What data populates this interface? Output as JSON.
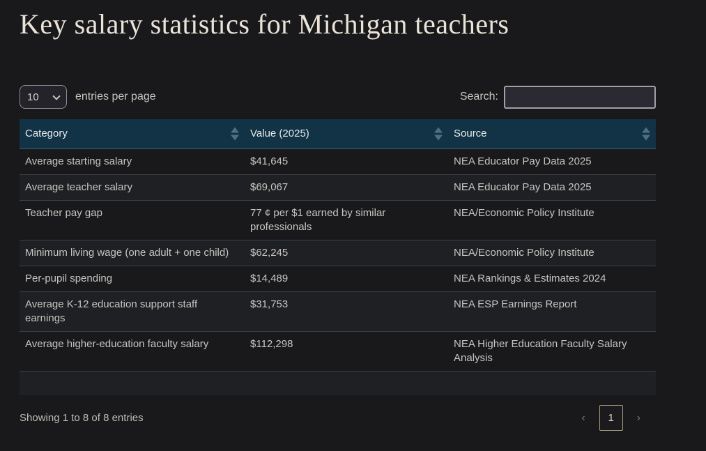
{
  "page": {
    "title": "Key salary statistics for Michigan teachers"
  },
  "controls": {
    "page_length": {
      "value": "10",
      "label": "entries per page"
    },
    "search": {
      "label": "Search:",
      "value": "",
      "placeholder": ""
    }
  },
  "table": {
    "columns": [
      {
        "label": "Category"
      },
      {
        "label": "Value (2025)"
      },
      {
        "label": "Source"
      }
    ],
    "rows": [
      [
        "Average starting salary",
        "$41,645",
        "NEA Educator Pay Data 2025"
      ],
      [
        "Average teacher salary",
        "$69,067",
        "NEA Educator Pay Data 2025"
      ],
      [
        "Teacher pay gap",
        "77 ¢ per $1 earned by similar professionals",
        "NEA/Economic Policy Institute"
      ],
      [
        "Minimum living wage (one adult + one child)",
        "$62,245",
        "NEA/Economic Policy Institute"
      ],
      [
        "Per-pupil spending",
        "$14,489",
        "NEA Rankings & Estimates 2024"
      ],
      [
        "Average K-12 education support staff earnings",
        "$31,753",
        "NEA ESP Earnings Report"
      ],
      [
        "Average higher-education faculty salary",
        "$112,298",
        "NEA Higher Education Faculty Salary Analysis"
      ]
    ],
    "eighth_row_partially_visible": true
  },
  "footer": {
    "info": "Showing 1 to 8 of 8 entries",
    "pagination": {
      "previous": "‹",
      "current_page": "1",
      "next": "›"
    }
  },
  "colors": {
    "background": "#19191b",
    "title_text": "#e9e3d8",
    "table_header_bg": "#113345",
    "sort_icon": "#4d6f80",
    "stripe_row_bg": "#1e2023",
    "row_divider": "#3d3f44",
    "pagination_active_border": "#a49c7d",
    "input_border": "#9fa0a8",
    "input_bg": "#2b2a33"
  }
}
